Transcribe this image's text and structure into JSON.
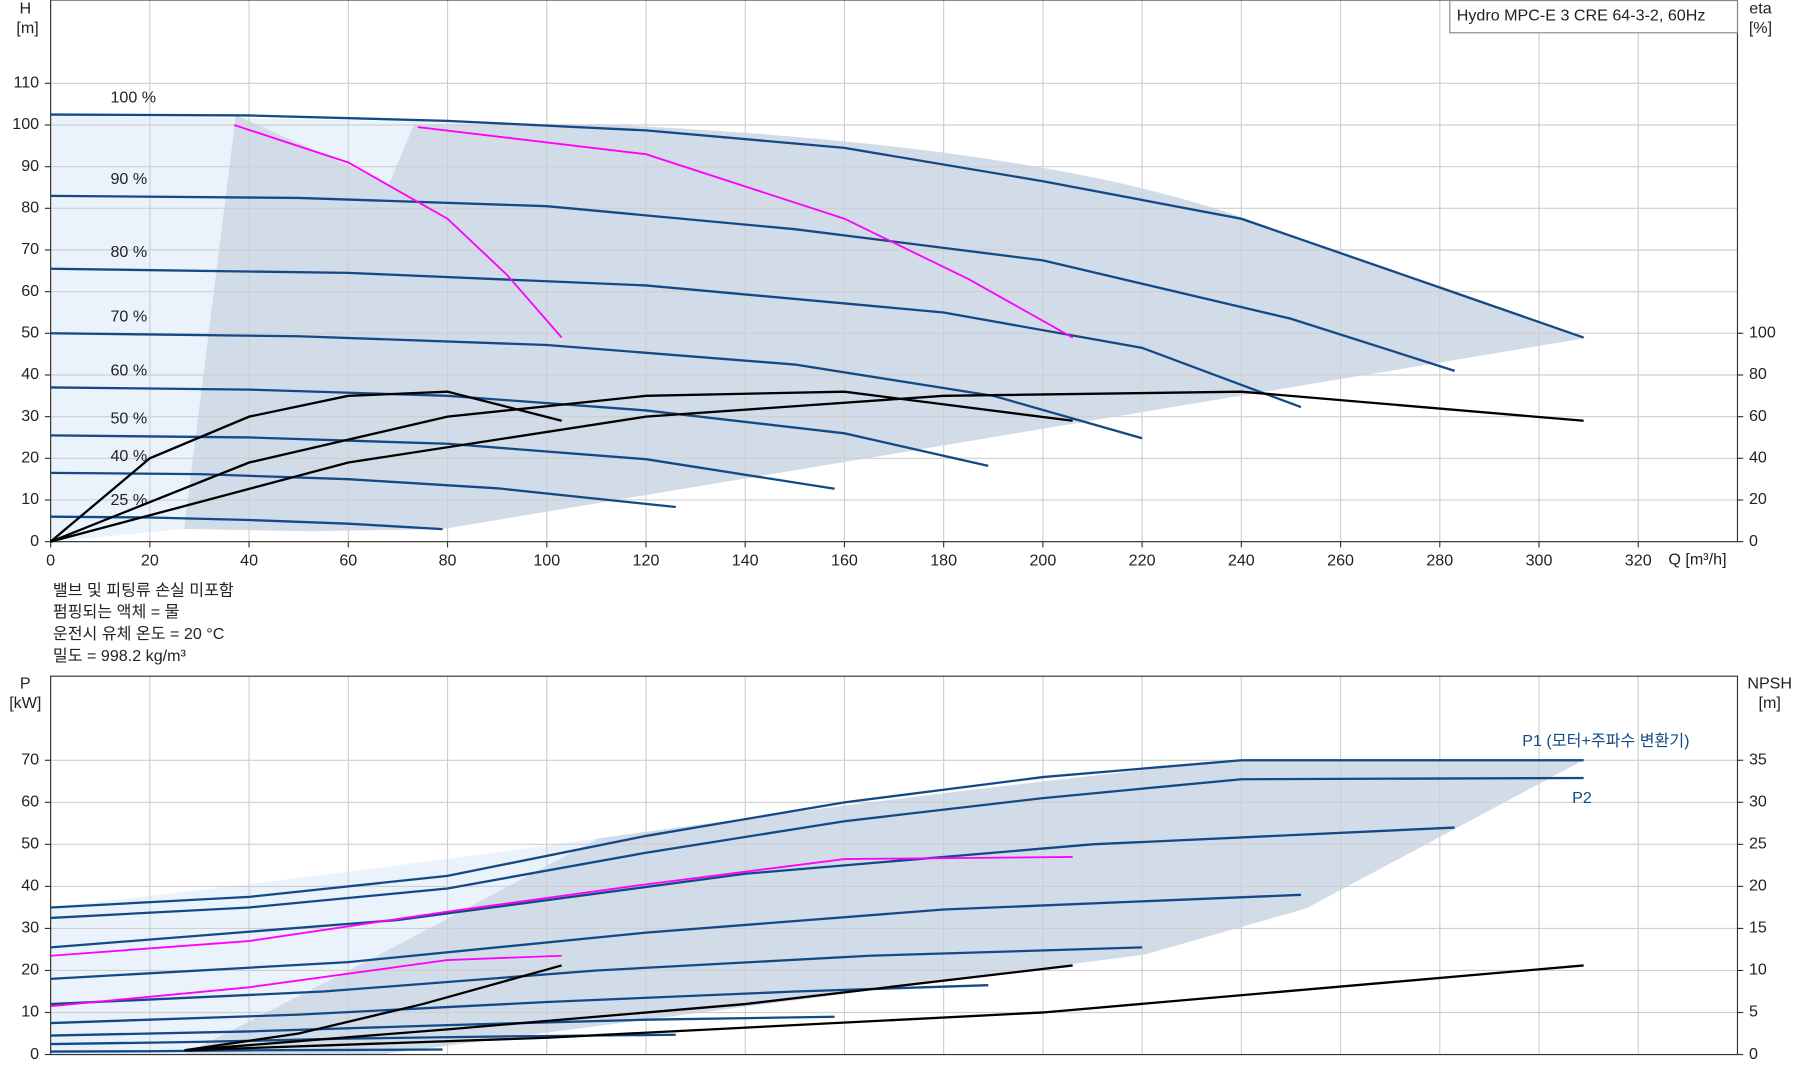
{
  "title": "Hydro MPC-E 3 CRE 64-3-2, 60Hz",
  "notes": [
    "밸브 및 피팅류 손실 미포함",
    "펌핑되는 액체 = 물",
    "운전시 유체 온도 = 20 °C",
    "밀도 =  998.2 kg/m³"
  ],
  "chart_data": [
    {
      "type": "line",
      "xlabel": "Q [m³/h]",
      "ylabel": "H",
      "yunit": "[m]",
      "y2label": "eta",
      "y2unit": "[%]",
      "xlim": [
        0,
        340
      ],
      "xticks": [
        0,
        20,
        40,
        60,
        80,
        100,
        120,
        140,
        160,
        180,
        200,
        220,
        240,
        260,
        280,
        300,
        320
      ],
      "ylim": [
        0,
        130
      ],
      "yticks": [
        0,
        10,
        20,
        30,
        40,
        50,
        60,
        70,
        80,
        90,
        100,
        110
      ],
      "y2lim": [
        0,
        260
      ],
      "y2ticks": [
        0,
        20,
        40,
        60,
        80,
        100
      ],
      "grid": true,
      "series": [
        {
          "name": "100 %",
          "color": "#134a86",
          "x": [
            0,
            40,
            80,
            120,
            160,
            200,
            240,
            280,
            309
          ],
          "values": [
            102.5,
            102.3,
            101,
            98.7,
            94.5,
            86.5,
            77.5,
            61,
            49
          ]
        },
        {
          "name": "90 %",
          "color": "#134a86",
          "x": [
            0,
            50,
            100,
            150,
            200,
            250,
            283
          ],
          "values": [
            83,
            82.5,
            80.5,
            75,
            67.5,
            53.5,
            41
          ]
        },
        {
          "name": "80 %",
          "color": "#134a86",
          "x": [
            0,
            60,
            120,
            180,
            220,
            252
          ],
          "values": [
            65.5,
            64.5,
            61.5,
            55,
            46.5,
            32.3
          ]
        },
        {
          "name": "70 %",
          "color": "#134a86",
          "x": [
            0,
            50,
            100,
            150,
            190,
            220
          ],
          "values": [
            50,
            49.3,
            47.2,
            42.5,
            35,
            24.8
          ]
        },
        {
          "name": "60 %",
          "color": "#134a86",
          "x": [
            0,
            40,
            80,
            120,
            160,
            189
          ],
          "values": [
            37,
            36.5,
            35,
            31.5,
            26,
            18.2
          ]
        },
        {
          "name": "50 %",
          "color": "#134a86",
          "x": [
            0,
            40,
            80,
            120,
            158
          ],
          "values": [
            25.5,
            25,
            23.5,
            19.8,
            12.7
          ]
        },
        {
          "name": "40 %",
          "color": "#134a86",
          "x": [
            0,
            30,
            60,
            90,
            126
          ],
          "values": [
            16.5,
            16.2,
            15,
            12.8,
            8.3
          ]
        },
        {
          "name": "25 %",
          "color": "#134a86",
          "x": [
            0,
            20,
            40,
            60,
            79
          ],
          "values": [
            6,
            5.8,
            5.2,
            4.3,
            3
          ]
        },
        {
          "color": "#ff00ff",
          "x": [
            37,
            60,
            80,
            92,
            103
          ],
          "values": [
            100,
            91,
            77.5,
            64,
            49
          ]
        },
        {
          "color": "#ff00ff",
          "x": [
            74,
            120,
            160,
            185,
            206
          ],
          "values": [
            99.5,
            93,
            77.5,
            63,
            49
          ]
        },
        {
          "color": "#000000",
          "axis": "y2",
          "x": [
            0,
            20,
            40,
            60,
            80,
            103
          ],
          "values": [
            0,
            40,
            60,
            70,
            72,
            58
          ]
        },
        {
          "color": "#000000",
          "axis": "y2",
          "x": [
            0,
            40,
            80,
            120,
            160,
            206
          ],
          "values": [
            0,
            38,
            60,
            70,
            72,
            58
          ]
        },
        {
          "color": "#000000",
          "axis": "y2",
          "x": [
            0,
            60,
            120,
            180,
            240,
            309
          ],
          "values": [
            0,
            38,
            60,
            70,
            72,
            58
          ]
        }
      ]
    },
    {
      "type": "line",
      "ylabel": "P",
      "yunit": "[kW]",
      "y2label": "NPSH",
      "y2unit": "[m]",
      "xlim": [
        0,
        340
      ],
      "ylim": [
        0,
        90
      ],
      "yticks": [
        0,
        10,
        20,
        30,
        40,
        50,
        60,
        70
      ],
      "y2lim": [
        0,
        45
      ],
      "y2ticks": [
        0,
        5,
        10,
        15,
        20,
        25,
        30,
        35
      ],
      "grid": true,
      "series": [
        {
          "name": "P1 (모터+주파수 변환기)",
          "color": "#134a86",
          "x": [
            0,
            40,
            80,
            120,
            160,
            200,
            240,
            309
          ],
          "values": [
            35,
            37.5,
            42.5,
            52,
            60,
            66,
            70,
            70
          ]
        },
        {
          "name": "P2",
          "color": "#134a86",
          "x": [
            0,
            40,
            80,
            120,
            160,
            200,
            240,
            309
          ],
          "values": [
            32.5,
            35,
            39.5,
            48,
            55.5,
            61,
            65.5,
            65.8
          ]
        },
        {
          "color": "#134a86",
          "x": [
            0,
            70,
            140,
            210,
            283
          ],
          "values": [
            25.5,
            32,
            43,
            50,
            54
          ]
        },
        {
          "color": "#134a86",
          "x": [
            0,
            60,
            120,
            180,
            252
          ],
          "values": [
            18,
            22,
            29,
            34.5,
            38
          ]
        },
        {
          "color": "#134a86",
          "x": [
            0,
            55,
            110,
            165,
            220
          ],
          "values": [
            12,
            15,
            20,
            23.5,
            25.5
          ]
        },
        {
          "color": "#134a86",
          "x": [
            0,
            50,
            100,
            150,
            189
          ],
          "values": [
            7.5,
            9.5,
            12.5,
            15,
            16.5
          ]
        },
        {
          "color": "#134a86",
          "x": [
            0,
            40,
            80,
            120,
            158
          ],
          "values": [
            4.5,
            5.5,
            7,
            8.3,
            9
          ]
        },
        {
          "color": "#134a86",
          "x": [
            0,
            30,
            60,
            90,
            126
          ],
          "values": [
            2.5,
            3,
            3.8,
            4.3,
            4.7
          ]
        },
        {
          "color": "#134a86",
          "x": [
            0,
            20,
            40,
            60,
            79
          ],
          "values": [
            0.7,
            0.8,
            1,
            1.1,
            1.2
          ]
        },
        {
          "color": "#ff00ff",
          "x": [
            0,
            40,
            80,
            120,
            160,
            206
          ],
          "values": [
            23.5,
            27,
            34,
            40.5,
            46.5,
            47
          ]
        },
        {
          "color": "#ff00ff",
          "x": [
            0,
            40,
            80,
            103
          ],
          "values": [
            11.5,
            16,
            22.5,
            23.5
          ]
        },
        {
          "color": "#000000",
          "axis": "y2",
          "x": [
            27,
            50,
            75,
            103
          ],
          "values": [
            0.5,
            2.5,
            6,
            10.6
          ]
        },
        {
          "color": "#000000",
          "axis": "y2",
          "x": [
            27,
            80,
            140,
            206
          ],
          "values": [
            0.5,
            3,
            6,
            10.6
          ]
        },
        {
          "color": "#000000",
          "axis": "y2",
          "x": [
            27,
            100,
            200,
            309
          ],
          "values": [
            0.5,
            2,
            5,
            10.6
          ]
        }
      ]
    }
  ]
}
